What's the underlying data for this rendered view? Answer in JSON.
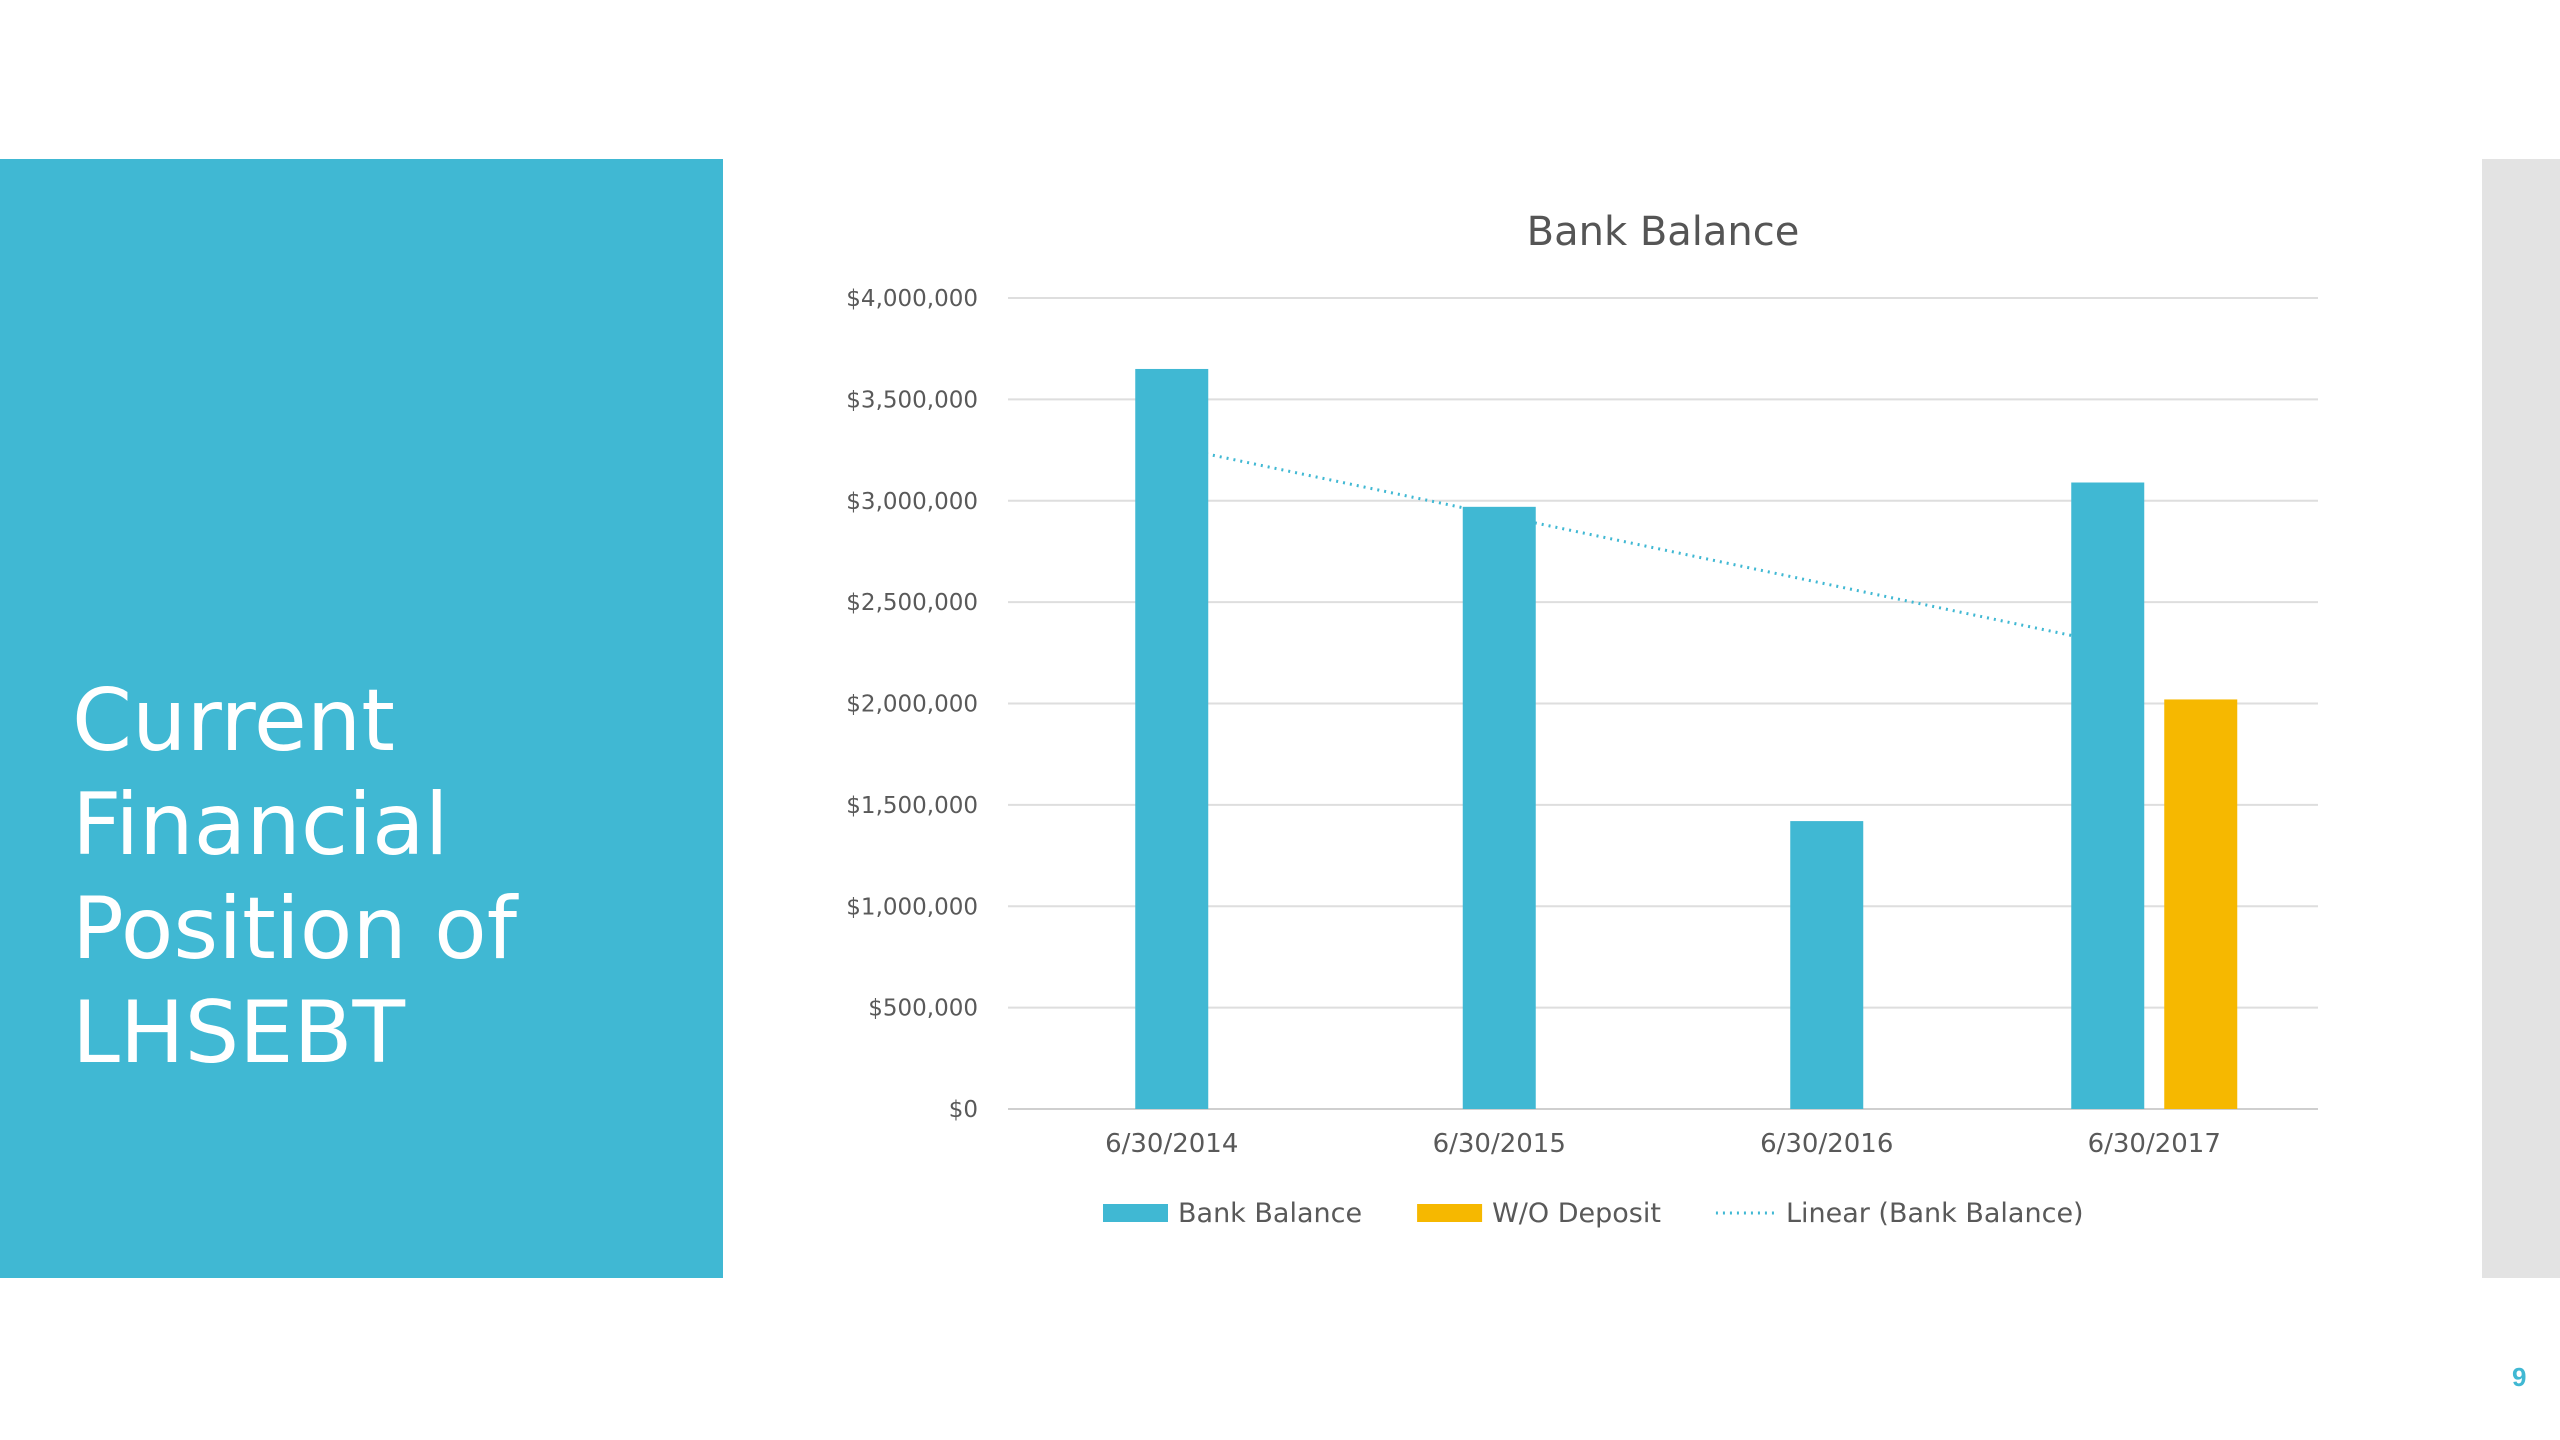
{
  "slide": {
    "title": "Current Financial Position of LHSEBT",
    "page_number": "9"
  },
  "colors": {
    "panel": "#40b8d3",
    "bank_balance": "#40b8d3",
    "wo_deposit": "#f6b800",
    "strip": "#e3e3e3"
  },
  "chart_data": {
    "type": "bar",
    "title": "Bank Balance",
    "xlabel": "",
    "ylabel": "",
    "categories": [
      "6/30/2014",
      "6/30/2015",
      "6/30/2016",
      "6/30/2017"
    ],
    "series": [
      {
        "name": "Bank Balance",
        "values": [
          3650000,
          2970000,
          1420000,
          3090000
        ],
        "color": "#40b8d3"
      },
      {
        "name": "W/O Deposit",
        "values": [
          null,
          null,
          null,
          2020000
        ],
        "color": "#f6b800"
      }
    ],
    "trendline": {
      "name": "Linear (Bank Balance)",
      "of_series": "Bank Balance",
      "type": "linear",
      "style": "dotted"
    },
    "ylim": [
      0,
      4000000
    ],
    "yticks": [
      "$0",
      "$500,000",
      "$1,000,000",
      "$1,500,000",
      "$2,000,000",
      "$2,500,000",
      "$3,000,000",
      "$3,500,000",
      "$4,000,000"
    ],
    "grid": true,
    "legend": "bottom"
  }
}
